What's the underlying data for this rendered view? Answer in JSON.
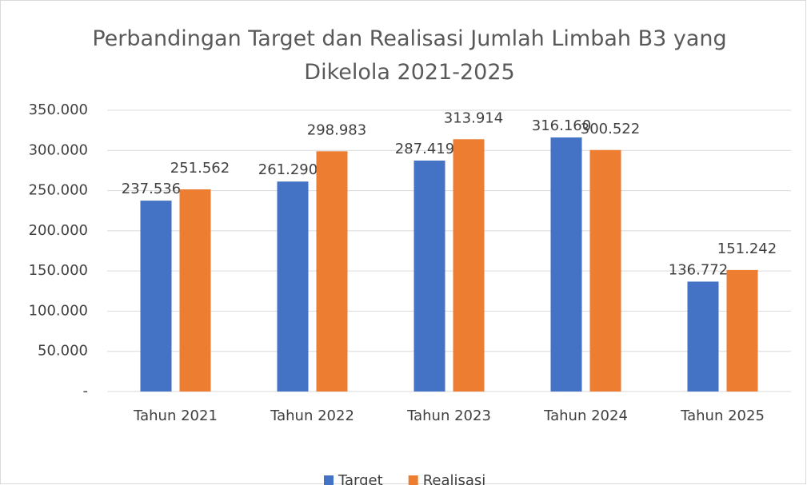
{
  "chart_data": {
    "type": "bar",
    "title": "Perbandingan Target dan Realisasi Jumlah Limbah B3 yang Dikelola 2021-2025",
    "categories": [
      "Tahun 2021",
      "Tahun 2022",
      "Tahun 2023",
      "Tahun 2024",
      "Tahun 2025"
    ],
    "series": [
      {
        "name": "Target",
        "color": "#4472c4",
        "values": [
          237536,
          261290,
          287419,
          316160,
          136772
        ],
        "value_labels": [
          "237.536",
          "261.290",
          "287.419",
          "316.160",
          "136.772"
        ]
      },
      {
        "name": "Realisasi",
        "color": "#ed7d31",
        "values": [
          251562,
          298983,
          313914,
          300522,
          151242
        ],
        "value_labels": [
          "251.562",
          "298.983",
          "313.914",
          "300.522",
          "151.242"
        ]
      }
    ],
    "ylim": [
      0,
      350000
    ],
    "yticks": [
      {
        "value": 0,
        "label": "-"
      },
      {
        "value": 50000,
        "label": "50.000"
      },
      {
        "value": 100000,
        "label": "100.000"
      },
      {
        "value": 150000,
        "label": "150.000"
      },
      {
        "value": 200000,
        "label": "200.000"
      },
      {
        "value": 250000,
        "label": "250.000"
      },
      {
        "value": 300000,
        "label": "300.000"
      },
      {
        "value": 350000,
        "label": "350.000"
      }
    ],
    "grid": true,
    "legend": "bottom"
  }
}
